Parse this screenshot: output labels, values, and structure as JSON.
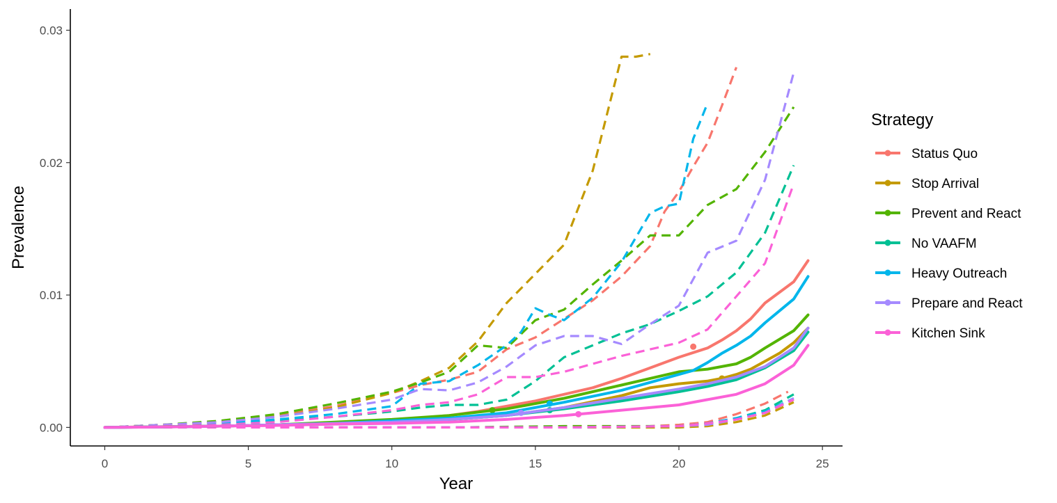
{
  "chart_data": {
    "type": "line",
    "xlabel": "Year",
    "ylabel": "Prevalence",
    "xlim": [
      -1.2,
      25.7
    ],
    "ylim": [
      -0.0014,
      0.0316
    ],
    "x_ticks": [
      0,
      5,
      10,
      15,
      20,
      25
    ],
    "x_tick_labels": [
      "0",
      "5",
      "10",
      "15",
      "20",
      "25"
    ],
    "y_ticks": [
      0.0,
      0.01,
      0.02,
      0.03
    ],
    "y_tick_labels": [
      "0.00",
      "0.01",
      "0.02",
      "0.03"
    ],
    "grid": false,
    "legend": {
      "title": "Strategy",
      "placement": "right"
    },
    "series": [
      {
        "name": "Status Quo",
        "color": "#F8766D",
        "mean": {
          "x": [
            0,
            2,
            4,
            6,
            8,
            10,
            11,
            12,
            13,
            14,
            15,
            16,
            17,
            18,
            19,
            20,
            21,
            21.5,
            22,
            22.5,
            23,
            24,
            24.5
          ],
          "y": [
            0.0,
            5e-05,
            0.0001,
            0.0002,
            0.0003,
            0.0005,
            0.0007,
            0.0009,
            0.0012,
            0.0016,
            0.002,
            0.0025,
            0.003,
            0.0037,
            0.0045,
            0.0053,
            0.006,
            0.0066,
            0.0073,
            0.0082,
            0.0094,
            0.011,
            0.0126
          ]
        },
        "upper": {
          "x": [
            0,
            2,
            4,
            6,
            8,
            10,
            11,
            12,
            13,
            14,
            15,
            16,
            17,
            18,
            19,
            19.5,
            20,
            20.5,
            21,
            21.5,
            22
          ],
          "y": [
            0.0,
            0.0002,
            0.0004,
            0.0009,
            0.0016,
            0.0026,
            0.0032,
            0.0036,
            0.0042,
            0.0059,
            0.0068,
            0.0082,
            0.0096,
            0.0114,
            0.0137,
            0.0163,
            0.0178,
            0.0197,
            0.0215,
            0.0243,
            0.0272
          ]
        },
        "lower": {
          "x": [
            0,
            4,
            8,
            12,
            16,
            19,
            20,
            21,
            21.5,
            22,
            23,
            23.8
          ],
          "y": [
            0.0,
            0.0,
            0.0,
            0.0,
            0.0,
            0.0001,
            0.0002,
            0.0004,
            0.0007,
            0.001,
            0.0018,
            0.0027
          ]
        },
        "marker": {
          "x": 20.5,
          "y": 0.0061
        }
      },
      {
        "name": "Stop Arrival",
        "color": "#C49A00",
        "mean": {
          "x": [
            0,
            2,
            4,
            6,
            8,
            10,
            12,
            14,
            16,
            18,
            19,
            20,
            21,
            21.5,
            22,
            22.5,
            23,
            23.5,
            24,
            24.5
          ],
          "y": [
            0.0,
            4e-05,
            0.0001,
            0.0002,
            0.0003,
            0.0004,
            0.0006,
            0.0009,
            0.0015,
            0.0024,
            0.003,
            0.0033,
            0.0035,
            0.0037,
            0.004,
            0.0044,
            0.005,
            0.0056,
            0.0064,
            0.0075
          ]
        },
        "upper": {
          "x": [
            0,
            2,
            4,
            6,
            8,
            10,
            11,
            12,
            13,
            14,
            15,
            16,
            17,
            18,
            18.5,
            19
          ],
          "y": [
            0.0,
            0.0002,
            0.0004,
            0.0008,
            0.0015,
            0.0026,
            0.0035,
            0.0045,
            0.0065,
            0.0094,
            0.0116,
            0.0138,
            0.0194,
            0.028,
            0.028,
            0.0282
          ]
        },
        "lower": {
          "x": [
            0,
            4,
            8,
            12,
            16,
            20,
            21,
            22,
            23,
            24
          ],
          "y": [
            0.0,
            0.0,
            0.0,
            0.0,
            0.0,
            0.0,
            0.0001,
            0.0004,
            0.0009,
            0.0019
          ]
        },
        "marker": {
          "x": 21.5,
          "y": 0.0037
        }
      },
      {
        "name": "Prevent and React",
        "color": "#53B400",
        "mean": {
          "x": [
            0,
            2,
            4,
            6,
            8,
            10,
            12,
            14,
            16,
            18,
            19,
            20,
            21,
            22,
            22.5,
            23,
            24,
            24.5
          ],
          "y": [
            0.0,
            5e-05,
            0.0001,
            0.0002,
            0.0004,
            0.0006,
            0.0009,
            0.0014,
            0.0022,
            0.0032,
            0.0037,
            0.0042,
            0.0044,
            0.0048,
            0.0053,
            0.006,
            0.0073,
            0.0085
          ]
        },
        "upper": {
          "x": [
            0,
            2,
            4,
            6,
            8,
            10,
            11,
            12,
            13,
            14,
            15,
            16,
            17,
            18,
            19,
            20,
            21,
            22,
            23,
            24
          ],
          "y": [
            0.0,
            0.0002,
            0.0005,
            0.001,
            0.0018,
            0.0027,
            0.0034,
            0.0042,
            0.0062,
            0.006,
            0.0081,
            0.0089,
            0.0108,
            0.0126,
            0.0145,
            0.0145,
            0.0168,
            0.018,
            0.0208,
            0.0242
          ]
        },
        "lower": {
          "x": [
            0,
            4,
            8,
            12,
            16,
            20,
            21,
            22,
            23,
            24
          ],
          "y": [
            0.0,
            0.0,
            0.0,
            0.0,
            0.0001,
            0.0001,
            0.0003,
            0.0006,
            0.0011,
            0.0021
          ]
        },
        "marker": {
          "x": 13.5,
          "y": 0.0013
        }
      },
      {
        "name": "No VAAFM",
        "color": "#00C094",
        "mean": {
          "x": [
            0,
            2,
            4,
            6,
            8,
            10,
            12,
            14,
            16,
            18,
            20,
            21,
            22,
            23,
            24,
            24.5
          ],
          "y": [
            0.0,
            3e-05,
            0.0001,
            0.0002,
            0.0003,
            0.0004,
            0.0006,
            0.0009,
            0.0014,
            0.002,
            0.0027,
            0.0031,
            0.0036,
            0.0045,
            0.0058,
            0.0072
          ]
        },
        "upper": {
          "x": [
            0,
            2,
            4,
            6,
            8,
            10,
            11,
            12,
            13,
            14,
            15,
            16,
            17,
            18,
            19,
            20,
            21,
            22,
            23,
            24
          ],
          "y": [
            0.0,
            0.0001,
            0.0002,
            0.0005,
            0.0008,
            0.0012,
            0.0015,
            0.0017,
            0.0017,
            0.0021,
            0.0035,
            0.0053,
            0.0062,
            0.0071,
            0.0078,
            0.0088,
            0.0099,
            0.0117,
            0.0147,
            0.0198
          ]
        },
        "lower": {
          "x": [
            0,
            4,
            8,
            12,
            16,
            20,
            21,
            22,
            23,
            24
          ],
          "y": [
            0.0,
            0.0,
            0.0,
            0.0,
            0.0,
            0.0001,
            0.0003,
            0.0007,
            0.0013,
            0.0025
          ]
        },
        "marker": {
          "x": 15.5,
          "y": 0.0013
        }
      },
      {
        "name": "Heavy Outreach",
        "color": "#00B6EB",
        "mean": {
          "x": [
            0,
            2,
            4,
            6,
            8,
            10,
            12,
            14,
            16,
            18,
            20,
            20.5,
            21,
            21.5,
            22,
            22.5,
            23,
            24,
            24.5
          ],
          "y": [
            0.0,
            4e-05,
            0.0001,
            0.0002,
            0.0003,
            0.0005,
            0.0007,
            0.0011,
            0.0019,
            0.0028,
            0.004,
            0.0043,
            0.0049,
            0.0056,
            0.0062,
            0.0069,
            0.0079,
            0.0097,
            0.0114
          ]
        },
        "upper": {
          "x": [
            0,
            2,
            4,
            6,
            8,
            10,
            11,
            12,
            13,
            14,
            14.5,
            15,
            15.5,
            16,
            17,
            18,
            19,
            19.5,
            20,
            20.5,
            21
          ],
          "y": [
            0.0,
            0.0001,
            0.0003,
            0.0006,
            0.001,
            0.0016,
            0.0033,
            0.0035,
            0.0047,
            0.0062,
            0.0072,
            0.009,
            0.0085,
            0.0081,
            0.0098,
            0.0125,
            0.0162,
            0.0167,
            0.0169,
            0.0218,
            0.0245
          ]
        },
        "lower": {
          "x": [
            0,
            4,
            8,
            12,
            16,
            20,
            21,
            22,
            23,
            24
          ],
          "y": [
            0.0,
            0.0,
            0.0,
            0.0,
            0.0,
            0.0001,
            0.0003,
            0.0007,
            0.0012,
            0.0022
          ]
        },
        "marker": {
          "x": 15.5,
          "y": 0.0018
        }
      },
      {
        "name": "Prepare and React",
        "color": "#A58AFF",
        "mean": {
          "x": [
            0,
            2,
            4,
            6,
            8,
            10,
            12,
            14,
            16,
            18,
            20,
            21,
            22,
            23,
            24,
            24.5
          ],
          "y": [
            0.0,
            4e-05,
            0.0001,
            0.0002,
            0.0003,
            0.0004,
            0.0006,
            0.0009,
            0.0015,
            0.0022,
            0.0029,
            0.0033,
            0.0038,
            0.0046,
            0.006,
            0.0075
          ]
        },
        "upper": {
          "x": [
            0,
            2,
            4,
            6,
            8,
            10,
            11,
            12,
            13,
            14,
            15,
            16,
            17,
            18,
            19,
            20,
            21,
            22,
            23,
            24
          ],
          "y": [
            0.0,
            0.0002,
            0.0004,
            0.0008,
            0.0014,
            0.0021,
            0.0029,
            0.0028,
            0.0034,
            0.0046,
            0.0062,
            0.0069,
            0.0069,
            0.0063,
            0.0078,
            0.0092,
            0.0132,
            0.0141,
            0.0187,
            0.0268
          ]
        },
        "lower": {
          "x": [
            0,
            4,
            8,
            12,
            16,
            20,
            21,
            22,
            23,
            24
          ],
          "y": [
            0.0,
            0.0,
            0.0,
            0.0,
            0.0,
            0.0001,
            0.0002,
            0.0006,
            0.0011,
            0.0022
          ]
        },
        "marker": {
          "x": 14.5,
          "y": 0.0011
        }
      },
      {
        "name": "Kitchen Sink",
        "color": "#FB61D7",
        "mean": {
          "x": [
            0,
            2,
            4,
            6,
            8,
            10,
            12,
            14,
            16,
            18,
            20,
            21,
            22,
            23,
            24,
            24.5
          ],
          "y": [
            0.0,
            3e-05,
            0.0001,
            0.00015,
            0.00025,
            0.0003,
            0.0004,
            0.0006,
            0.0009,
            0.0013,
            0.0017,
            0.0021,
            0.0025,
            0.0033,
            0.0047,
            0.0062
          ]
        },
        "upper": {
          "x": [
            0,
            2,
            4,
            6,
            8,
            10,
            11,
            12,
            13,
            14,
            15,
            16,
            17,
            18,
            19,
            20,
            21,
            22,
            23,
            24
          ],
          "y": [
            0.0,
            0.0001,
            0.0002,
            0.0004,
            0.0008,
            0.0013,
            0.0017,
            0.0019,
            0.0025,
            0.0038,
            0.0038,
            0.0042,
            0.0048,
            0.0054,
            0.0059,
            0.0064,
            0.0074,
            0.0099,
            0.0124,
            0.0184
          ]
        },
        "lower": {
          "x": [
            0,
            4,
            8,
            12,
            16,
            20,
            21,
            22,
            23,
            24
          ],
          "y": [
            0.0,
            0.0,
            0.0,
            0.0,
            0.0,
            0.0001,
            0.0003,
            0.0006,
            0.0011,
            0.0021
          ]
        },
        "marker": {
          "x": 16.5,
          "y": 0.001
        }
      }
    ]
  }
}
